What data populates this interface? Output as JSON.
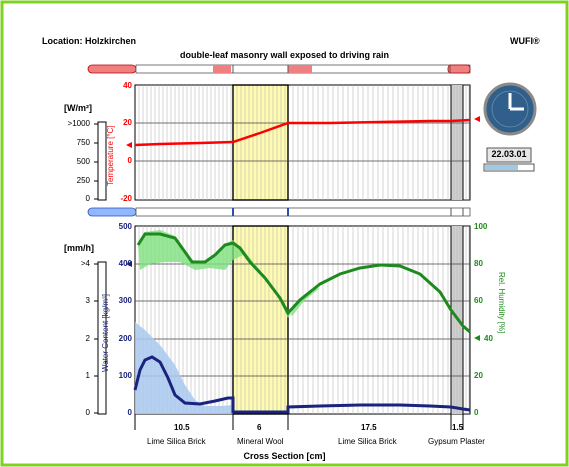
{
  "header": {
    "location": "Location: Holzkirchen",
    "brand": "WUFI®",
    "title": "double-leaf masonry wall exposed to driving rain"
  },
  "clock": {
    "date": "22.03.01"
  },
  "top_chart": {
    "left_unit": "[W/m²]",
    "left_ticks": [
      ">1000",
      "750",
      "500",
      "250",
      "0"
    ],
    "ylabel": "Temperature [°C]",
    "y_ticks": [
      "40",
      "20",
      "0",
      "-20"
    ]
  },
  "bottom_chart": {
    "left_unit": "[mm/h]",
    "left_ticks": [
      ">4",
      "3",
      "2",
      "1",
      "0"
    ],
    "ylabel_left": "Water Content [kg/m³]",
    "y_left_ticks": [
      "500",
      "400",
      "300",
      "200",
      "100",
      "0"
    ],
    "ylabel_right": "Rel. Humidity [%]",
    "y_right_ticks": [
      "100",
      "80",
      "60",
      "40",
      "20",
      "0"
    ]
  },
  "layers": [
    {
      "thickness": "10.5",
      "name": "Lime Silica Brick"
    },
    {
      "thickness": "6",
      "name": "Mineral Wool"
    },
    {
      "thickness": "17.5",
      "name": "Lime Silica Brick"
    },
    {
      "thickness": "1.5",
      "name": "Gypsum Plaster"
    }
  ],
  "xlabel": "Cross Section [cm]",
  "colors": {
    "frame": "#7ed321",
    "temperature": "#ff0000",
    "water_content": "#1a237e",
    "rel_humidity": "#1e8a1e",
    "insulation": "#fffbb0",
    "clock_face": "#2f5f8a"
  }
}
